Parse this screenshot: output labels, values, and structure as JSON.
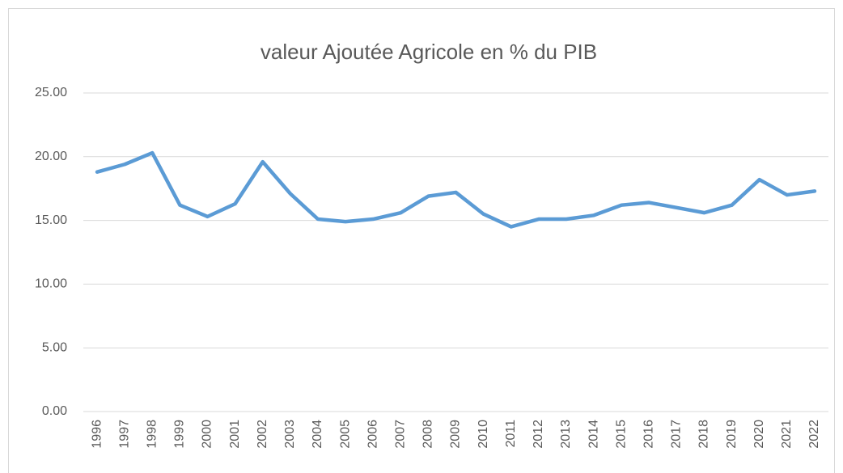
{
  "chart_data": {
    "type": "line",
    "title": "valeur Ajoutée Agricole en % du PIB",
    "categories": [
      "1996",
      "1997",
      "1998",
      "1999",
      "2000",
      "2001",
      "2002",
      "2003",
      "2004",
      "2005",
      "2006",
      "2007",
      "2008",
      "2009",
      "2010",
      "2011",
      "2012",
      "2013",
      "2014",
      "2015",
      "2016",
      "2017",
      "2018",
      "2019",
      "2020",
      "2021",
      "2022"
    ],
    "series": [
      {
        "name": "valeur Ajoutée Agricole en % du PIB",
        "color": "#5b9bd5",
        "values": [
          18.8,
          19.4,
          20.3,
          16.2,
          15.3,
          16.3,
          19.6,
          17.1,
          15.1,
          14.9,
          15.1,
          15.6,
          16.9,
          17.2,
          15.5,
          14.5,
          15.1,
          15.1,
          15.4,
          16.2,
          16.4,
          16.0,
          15.6,
          16.2,
          18.2,
          17.0,
          17.3
        ]
      }
    ],
    "ylim": [
      0,
      25
    ],
    "yticks": [
      {
        "value": 0,
        "label": "0.00"
      },
      {
        "value": 5,
        "label": "5.00"
      },
      {
        "value": 10,
        "label": "10.00"
      },
      {
        "value": 15,
        "label": "15.00"
      },
      {
        "value": 20,
        "label": "20.00"
      },
      {
        "value": 25,
        "label": "25.00"
      }
    ],
    "grid": true
  }
}
